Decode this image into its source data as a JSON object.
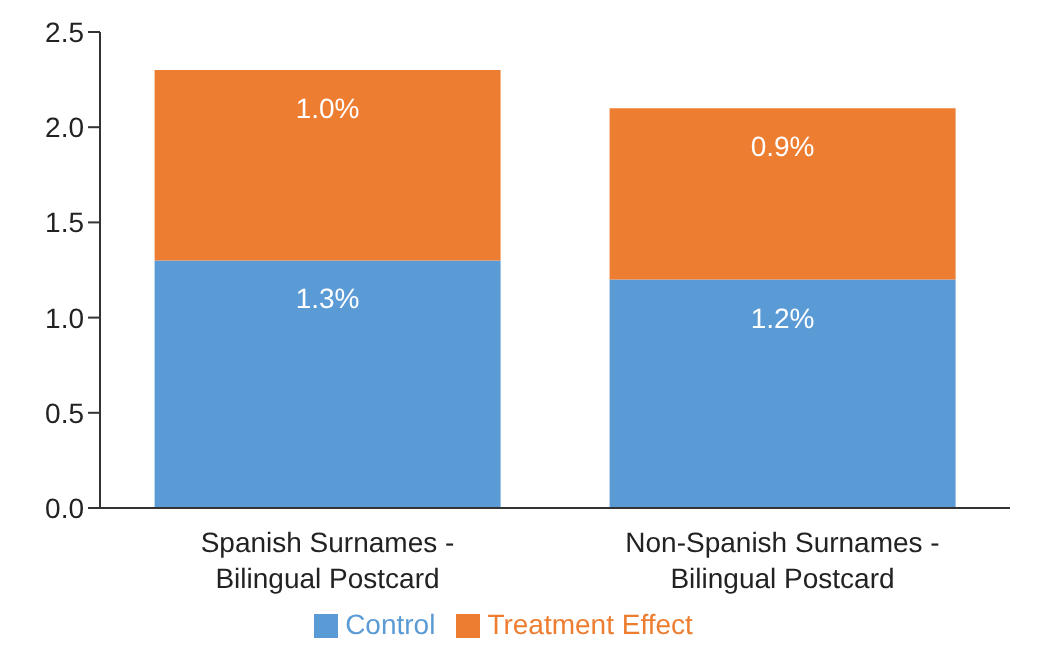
{
  "chart_data": {
    "type": "bar",
    "stacked": true,
    "categories": [
      "Spanish Surnames - Bilingual Postcard",
      "Non-Spanish Surnames - Bilingual Postcard"
    ],
    "series": [
      {
        "name": "Control",
        "color": "#5b9bd5",
        "values": [
          1.3,
          1.2
        ],
        "value_labels": [
          "1.3%",
          "1.2%"
        ]
      },
      {
        "name": "Treatment Effect",
        "color": "#ed7d31",
        "values": [
          1.0,
          0.9
        ],
        "value_labels": [
          "1.0%",
          "0.9%"
        ]
      }
    ],
    "ylim": [
      0,
      2.5
    ],
    "yticks": [
      {
        "value": 0,
        "label": "0.0"
      },
      {
        "value": 0.5,
        "label": "0.5"
      },
      {
        "value": 1,
        "label": "1.0"
      },
      {
        "value": 1.5,
        "label": "1.5"
      },
      {
        "value": 2,
        "label": "2.0"
      },
      {
        "value": 2.5,
        "label": "2.5"
      }
    ],
    "grid": false,
    "legend": "bottom"
  }
}
